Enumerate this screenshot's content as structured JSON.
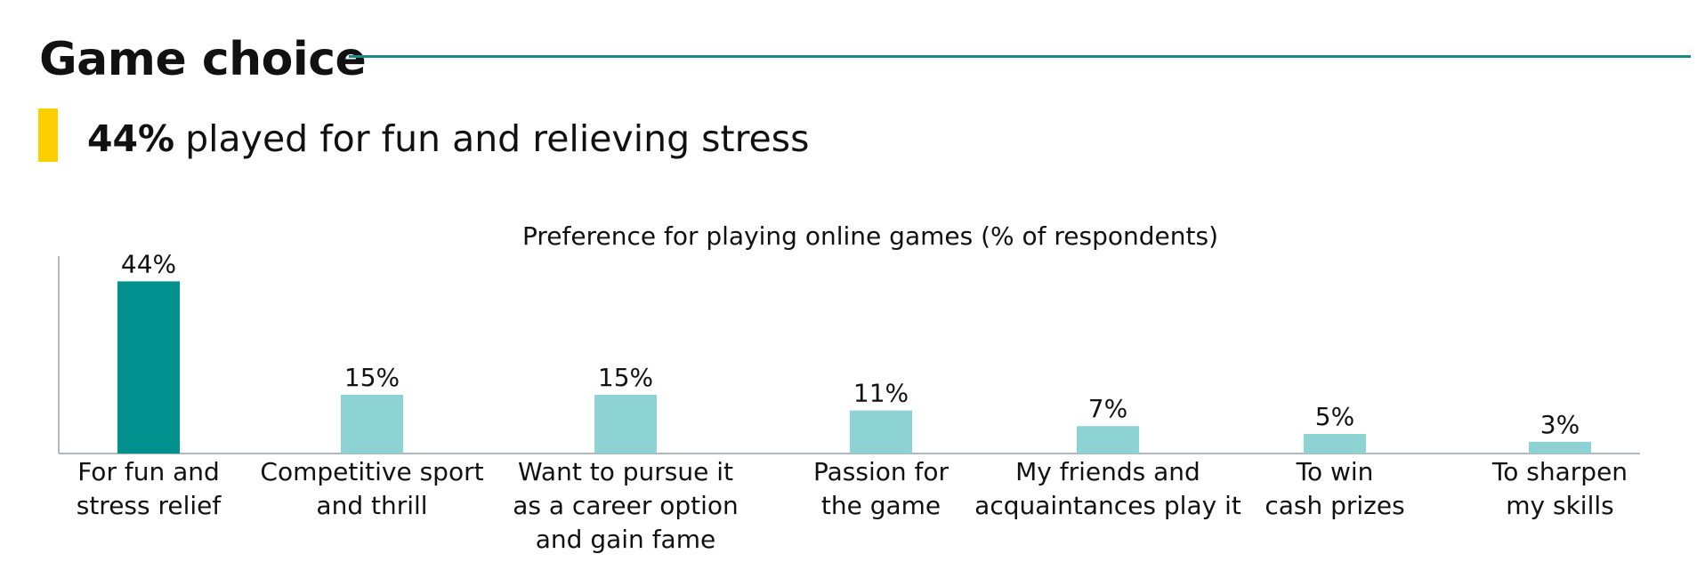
{
  "header": {
    "title": "Game choice",
    "highlight_stat": "44%",
    "highlight_text": "played for fun and relieving stress"
  },
  "colors": {
    "accent_teal": "#00918e",
    "light_teal": "#8ed3d3",
    "rule_teal": "#1a8b8b",
    "highlight_yellow": "#ffd000",
    "axis_gray": "#b0b8bf"
  },
  "chart_data": {
    "type": "bar",
    "title": "Preference for playing online games (% of respondents)",
    "xlabel": "",
    "ylabel": "",
    "ylim": [
      0,
      50
    ],
    "grid": false,
    "categories": [
      [
        "For fun and",
        "stress relief"
      ],
      [
        "Competitive sport",
        "and thrill"
      ],
      [
        "Want to pursue it",
        "as a career option",
        "and gain fame"
      ],
      [
        "Passion for",
        "the game"
      ],
      [
        "My friends and",
        "acquaintances play it"
      ],
      [
        "To win",
        "cash prizes"
      ],
      [
        "To sharpen",
        "my skills"
      ]
    ],
    "values": [
      44,
      15,
      15,
      11,
      7,
      5,
      3
    ],
    "value_labels": [
      "44%",
      "15%",
      "15%",
      "11%",
      "7%",
      "5%",
      "3%"
    ],
    "highlighted_index": 0
  }
}
